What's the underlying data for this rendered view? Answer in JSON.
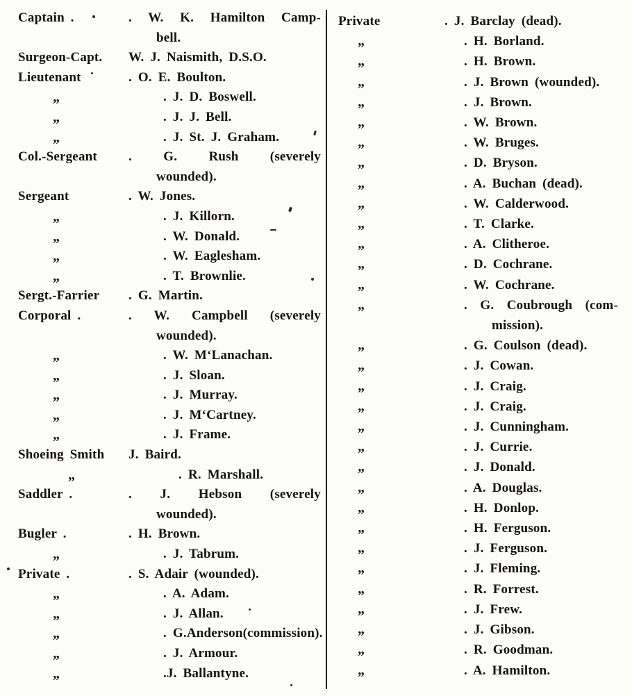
{
  "page": {
    "description": "Scanned printed regimental nominal roll, two-column list of ranks and names",
    "background_color": "#fcfcf9",
    "ink_color": "#16130f",
    "divider_color": "#1c1a16"
  },
  "columns": [
    {
      "side": "left",
      "entries": [
        {
          "rank": "Captain .",
          "name_lines": [
            ". W. K. Hamilton Camp-",
            "bell."
          ]
        },
        {
          "rank": "Surgeon-Capt.",
          "name_lines": [
            "W. J. Naismith, D.S.O."
          ]
        },
        {
          "rank": "Lieutenant",
          "name_lines": [
            ". O. E. Boulton."
          ]
        },
        {
          "rank": "„",
          "ditto": true,
          "name_lines": [
            ". J. D. Boswell."
          ]
        },
        {
          "rank": "„",
          "ditto": true,
          "name_lines": [
            ". J. J. Bell."
          ]
        },
        {
          "rank": "„",
          "ditto": true,
          "name_lines": [
            ". J. St. J. Graham."
          ]
        },
        {
          "rank": "Col.-Sergeant",
          "name_lines": [
            ". G. Rush (severely",
            "wounded)."
          ]
        },
        {
          "rank": "Sergeant",
          "name_lines": [
            ". W. Jones."
          ]
        },
        {
          "rank": "„",
          "ditto": true,
          "name_lines": [
            ". J. Killorn."
          ]
        },
        {
          "rank": "„",
          "ditto": true,
          "name_lines": [
            ". W. Donald."
          ]
        },
        {
          "rank": "„",
          "ditto": true,
          "name_lines": [
            ". W. Eaglesham."
          ]
        },
        {
          "rank": "„",
          "ditto": true,
          "name_lines": [
            ". T. Brownlie."
          ]
        },
        {
          "rank": "Sergt.-Farrier",
          "name_lines": [
            ". G. Martin."
          ]
        },
        {
          "rank": "Corporal .",
          "name_lines": [
            ". W. Campbell (severely",
            "wounded)."
          ]
        },
        {
          "rank": "„",
          "ditto": true,
          "name_lines": [
            ". W. M‘Lanachan."
          ]
        },
        {
          "rank": "„",
          "ditto": true,
          "name_lines": [
            ". J. Sloan."
          ]
        },
        {
          "rank": "„",
          "ditto": true,
          "name_lines": [
            ". J. Murray."
          ]
        },
        {
          "rank": "„",
          "ditto": true,
          "name_lines": [
            ". J. M‘Cartney."
          ]
        },
        {
          "rank": "„",
          "ditto": true,
          "name_lines": [
            ". J. Frame."
          ]
        },
        {
          "rank": "Shoeing Smith",
          "name_lines": [
            "J. Baird."
          ]
        },
        {
          "rank": "„",
          "ditto": true,
          "deep": true,
          "name_lines": [
            ". R. Marshall."
          ]
        },
        {
          "rank": "Saddler .",
          "name_lines": [
            ". J. Hebson (severely",
            "wounded)."
          ]
        },
        {
          "rank": "Bugler .",
          "name_lines": [
            ". H. Brown."
          ]
        },
        {
          "rank": "„",
          "ditto": true,
          "name_lines": [
            ". J. Tabrum."
          ]
        },
        {
          "rank": "Private .",
          "name_lines": [
            ". S. Adair (wounded)."
          ]
        },
        {
          "rank": "„",
          "ditto": true,
          "name_lines": [
            ". A. Adam."
          ]
        },
        {
          "rank": "„",
          "ditto": true,
          "name_lines": [
            ". J. Allan."
          ]
        },
        {
          "rank": "„",
          "ditto": true,
          "name_lines": [
            ". G.Anderson(commission)."
          ]
        },
        {
          "rank": "„",
          "ditto": true,
          "name_lines": [
            ". J. Armour."
          ]
        },
        {
          "rank": "„",
          "ditto": true,
          "name_lines": [
            ".J. Ballantyne."
          ]
        }
      ]
    },
    {
      "side": "right",
      "entries": [
        {
          "rank": "Private",
          "name_lines": [
            ". J. Barclay (dead)."
          ]
        },
        {
          "rank": "„",
          "ditto": true,
          "name_lines": [
            ". H. Borland."
          ]
        },
        {
          "rank": "„",
          "ditto": true,
          "name_lines": [
            ". H. Brown."
          ]
        },
        {
          "rank": "„",
          "ditto": true,
          "name_lines": [
            ". J. Brown (wounded)."
          ]
        },
        {
          "rank": "„",
          "ditto": true,
          "name_lines": [
            ". J. Brown."
          ]
        },
        {
          "rank": "„",
          "ditto": true,
          "name_lines": [
            ". W. Brown."
          ]
        },
        {
          "rank": "„",
          "ditto": true,
          "name_lines": [
            ". W. Bruges."
          ]
        },
        {
          "rank": "„",
          "ditto": true,
          "name_lines": [
            ". D. Bryson."
          ]
        },
        {
          "rank": "„",
          "ditto": true,
          "name_lines": [
            ". A. Buchan (dead)."
          ]
        },
        {
          "rank": "„",
          "ditto": true,
          "name_lines": [
            ". W. Calderwood."
          ]
        },
        {
          "rank": "„",
          "ditto": true,
          "name_lines": [
            ". T. Clarke."
          ]
        },
        {
          "rank": "„",
          "ditto": true,
          "name_lines": [
            ". A. Clitheroe."
          ]
        },
        {
          "rank": "„",
          "ditto": true,
          "name_lines": [
            ". D. Cochrane."
          ]
        },
        {
          "rank": "„",
          "ditto": true,
          "name_lines": [
            ". W. Cochrane."
          ]
        },
        {
          "rank": "„",
          "ditto": true,
          "name_lines": [
            ". G. Coubrough (com-",
            "mission)."
          ]
        },
        {
          "rank": "„",
          "ditto": true,
          "name_lines": [
            ". G. Coulson (dead)."
          ]
        },
        {
          "rank": "„",
          "ditto": true,
          "name_lines": [
            ". J. Cowan."
          ]
        },
        {
          "rank": "„",
          "ditto": true,
          "name_lines": [
            ". J. Craig."
          ]
        },
        {
          "rank": "„",
          "ditto": true,
          "name_lines": [
            ". J. Craig."
          ]
        },
        {
          "rank": "„",
          "ditto": true,
          "name_lines": [
            ". J. Cunningham."
          ]
        },
        {
          "rank": "„",
          "ditto": true,
          "name_lines": [
            ". J. Currie."
          ]
        },
        {
          "rank": "„",
          "ditto": true,
          "name_lines": [
            ". J. Donald."
          ]
        },
        {
          "rank": "„",
          "ditto": true,
          "name_lines": [
            ". A. Douglas."
          ]
        },
        {
          "rank": "„",
          "ditto": true,
          "name_lines": [
            ". H. Donlop."
          ]
        },
        {
          "rank": "„",
          "ditto": true,
          "name_lines": [
            ". H. Ferguson."
          ]
        },
        {
          "rank": "„",
          "ditto": true,
          "name_lines": [
            ". J. Ferguson."
          ]
        },
        {
          "rank": "„",
          "ditto": true,
          "name_lines": [
            ". J. Fleming."
          ]
        },
        {
          "rank": "„",
          "ditto": true,
          "name_lines": [
            ". R. Forrest."
          ]
        },
        {
          "rank": "„",
          "ditto": true,
          "name_lines": [
            ". J. Frew."
          ]
        },
        {
          "rank": "„",
          "ditto": true,
          "name_lines": [
            ". J. Gibson."
          ]
        },
        {
          "rank": "„",
          "ditto": true,
          "name_lines": [
            ". R. Goodman."
          ]
        },
        {
          "rank": "„",
          "ditto": true,
          "name_lines": [
            ". A. Hamilton."
          ]
        }
      ]
    }
  ]
}
